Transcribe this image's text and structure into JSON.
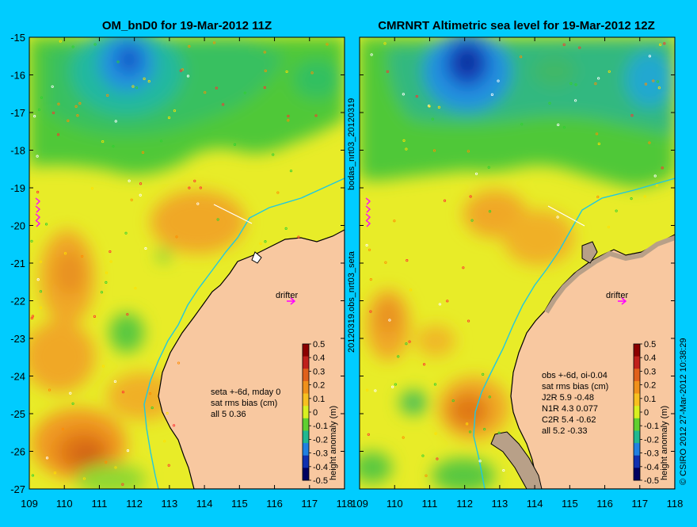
{
  "left_panel": {
    "title": "OM_bnD0 for 19-Mar-2012 11Z",
    "drifter_label": "drifter",
    "stats": [
      "seta +-6d, mday 0",
      "sat rms bias (cm)",
      "all 5 0.36"
    ]
  },
  "right_panel": {
    "title": "CMRNRT Altimetric sea level  for 19-Mar-2012 12Z",
    "drifter_label": "drifter",
    "stats": [
      "obs +-6d, oi-0.04",
      "sat rms bias (cm)",
      "J2R   5.9 -0.48",
      "N1R   4.3 0.077",
      "C2R   5.4 -0.62",
      "all 5.2 -0.33"
    ]
  },
  "side_labels": {
    "middle_top": "bodas_nrt03_20120319",
    "middle_bottom": "20120319.obs_nrt03_seta",
    "right_edge": "© CSIRO 2012   27-Mar-2012 10:38:29"
  },
  "axes": {
    "lat_ticks": [
      "-15",
      "-16",
      "-17",
      "-18",
      "-19",
      "-20",
      "-21",
      "-22",
      "-23",
      "-24",
      "-25",
      "-26",
      "-27"
    ],
    "lon_ticks_left": [
      "109",
      "110",
      "111",
      "112",
      "113",
      "114",
      "115",
      "116",
      "117",
      "118"
    ],
    "lon_ticks_right": [
      "109",
      "110",
      "111",
      "112",
      "113",
      "114",
      "115",
      "116",
      "117",
      "118"
    ]
  },
  "colorbar": {
    "ticks": [
      "0.5",
      "0.4",
      "0.3",
      "0.2",
      "0.1",
      "0",
      "-0.1",
      "-0.2",
      "-0.3",
      "-0.4",
      "-0.5"
    ],
    "label": "height anomaly (m)",
    "colors": [
      "#8b0000",
      "#c0201b",
      "#e0601a",
      "#f0901a",
      "#f8c020",
      "#d8f020",
      "#60d030",
      "#20b890",
      "#2080e0",
      "#1030b0",
      "#000060"
    ]
  },
  "colors": {
    "background": "#00ccff",
    "land": "#f8c8a0",
    "coast": "#000000",
    "isobath": "#20c8e0"
  }
}
